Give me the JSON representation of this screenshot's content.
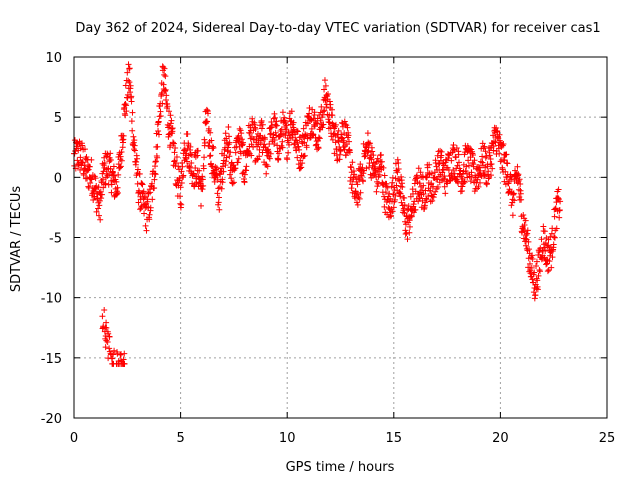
{
  "chart_data": {
    "type": "scatter",
    "title": "Day 362 of 2024, Sidereal Day-to-day VTEC variation (SDTVAR) for receiver cas1",
    "xlabel": "GPS time / hours",
    "ylabel": "SDTVAR / TECUs",
    "xlim": [
      0,
      25
    ],
    "ylim": [
      -20,
      10
    ],
    "xticks": [
      "0",
      "5",
      "10",
      "15",
      "20",
      "25"
    ],
    "yticks": [
      "10",
      "5",
      "0",
      "-5",
      "-10",
      "-15",
      "-20"
    ],
    "grid": true,
    "marker": "+",
    "series": [
      {
        "name": "SDTVAR",
        "color": "#ff0000",
        "trend": [
          [
            0.0,
            1.5
          ],
          [
            0.2,
            2.0
          ],
          [
            0.4,
            1.5
          ],
          [
            0.6,
            0.5
          ],
          [
            0.8,
            0.2
          ],
          [
            1.0,
            -1.0
          ],
          [
            1.2,
            -2.5
          ],
          [
            1.4,
            0.5
          ],
          [
            1.6,
            1.0
          ],
          [
            1.8,
            0.0
          ],
          [
            2.0,
            -1.0
          ],
          [
            2.2,
            2.0
          ],
          [
            2.4,
            6.0
          ],
          [
            2.6,
            8.5
          ],
          [
            2.8,
            3.0
          ],
          [
            3.0,
            -0.5
          ],
          [
            3.2,
            -2.0
          ],
          [
            3.4,
            -3.0
          ],
          [
            3.6,
            -2.0
          ],
          [
            3.8,
            1.0
          ],
          [
            4.0,
            5.0
          ],
          [
            4.2,
            8.5
          ],
          [
            4.4,
            5.0
          ],
          [
            4.6,
            3.0
          ],
          [
            4.8,
            0.5
          ],
          [
            5.0,
            -1.5
          ],
          [
            5.2,
            3.0
          ],
          [
            5.4,
            2.0
          ],
          [
            5.6,
            0.5
          ],
          [
            5.8,
            1.0
          ],
          [
            6.0,
            -1.5
          ],
          [
            6.2,
            5.0
          ],
          [
            6.4,
            2.5
          ],
          [
            6.6,
            0.5
          ],
          [
            6.8,
            -1.5
          ],
          [
            7.0,
            1.5
          ],
          [
            7.2,
            3.5
          ],
          [
            7.4,
            0.0
          ],
          [
            7.6,
            2.0
          ],
          [
            7.8,
            3.0
          ],
          [
            8.0,
            0.5
          ],
          [
            8.2,
            3.0
          ],
          [
            8.4,
            3.5
          ],
          [
            8.6,
            2.0
          ],
          [
            8.8,
            3.5
          ],
          [
            9.0,
            1.5
          ],
          [
            9.2,
            3.0
          ],
          [
            9.4,
            4.0
          ],
          [
            9.6,
            2.5
          ],
          [
            9.8,
            4.0
          ],
          [
            10.0,
            3.0
          ],
          [
            10.2,
            5.0
          ],
          [
            10.4,
            3.0
          ],
          [
            10.6,
            2.0
          ],
          [
            10.8,
            3.0
          ],
          [
            11.0,
            4.5
          ],
          [
            11.2,
            5.0
          ],
          [
            11.4,
            3.5
          ],
          [
            11.6,
            4.5
          ],
          [
            11.8,
            7.0
          ],
          [
            12.0,
            5.0
          ],
          [
            12.2,
            3.5
          ],
          [
            12.4,
            2.5
          ],
          [
            12.6,
            4.0
          ],
          [
            12.8,
            3.0
          ],
          [
            13.0,
            0.5
          ],
          [
            13.2,
            -1.5
          ],
          [
            13.4,
            -0.5
          ],
          [
            13.6,
            1.5
          ],
          [
            13.8,
            2.5
          ],
          [
            14.0,
            1.0
          ],
          [
            14.2,
            0.0
          ],
          [
            14.4,
            1.0
          ],
          [
            14.6,
            -1.5
          ],
          [
            14.8,
            -2.5
          ],
          [
            15.0,
            -1.0
          ],
          [
            15.2,
            0.5
          ],
          [
            15.4,
            -2.0
          ],
          [
            15.6,
            -4.0
          ],
          [
            15.8,
            -3.0
          ],
          [
            16.0,
            -1.5
          ],
          [
            16.2,
            -0.5
          ],
          [
            16.4,
            -1.5
          ],
          [
            16.6,
            0.0
          ],
          [
            16.8,
            -1.0
          ],
          [
            17.0,
            0.5
          ],
          [
            17.2,
            1.0
          ],
          [
            17.4,
            0.0
          ],
          [
            17.6,
            1.0
          ],
          [
            17.8,
            1.5
          ],
          [
            18.0,
            1.0
          ],
          [
            18.2,
            0.0
          ],
          [
            18.4,
            1.5
          ],
          [
            18.6,
            1.0
          ],
          [
            18.8,
            0.0
          ],
          [
            19.0,
            0.5
          ],
          [
            19.2,
            1.5
          ],
          [
            19.4,
            0.5
          ],
          [
            19.6,
            2.0
          ],
          [
            19.8,
            3.5
          ],
          [
            20.0,
            2.0
          ],
          [
            20.2,
            1.0
          ],
          [
            20.4,
            0.0
          ],
          [
            20.6,
            -2.0
          ],
          [
            20.8,
            0.5
          ],
          [
            21.0,
            -3.0
          ],
          [
            21.2,
            -5.0
          ],
          [
            21.4,
            -7.0
          ],
          [
            21.6,
            -9.0
          ],
          [
            21.8,
            -7.5
          ],
          [
            22.0,
            -5.0
          ],
          [
            22.2,
            -6.5
          ],
          [
            22.4,
            -6.0
          ],
          [
            22.6,
            -3.0
          ],
          [
            22.8,
            -2.0
          ]
        ],
        "clusters": [
          {
            "x_range": [
              1.3,
              2.4
            ],
            "y_range": [
              -15.5,
              -10.0
            ]
          }
        ],
        "x_range": [
          0.0,
          22.8
        ],
        "y_range": [
          -15.5,
          9.5
        ]
      }
    ]
  }
}
